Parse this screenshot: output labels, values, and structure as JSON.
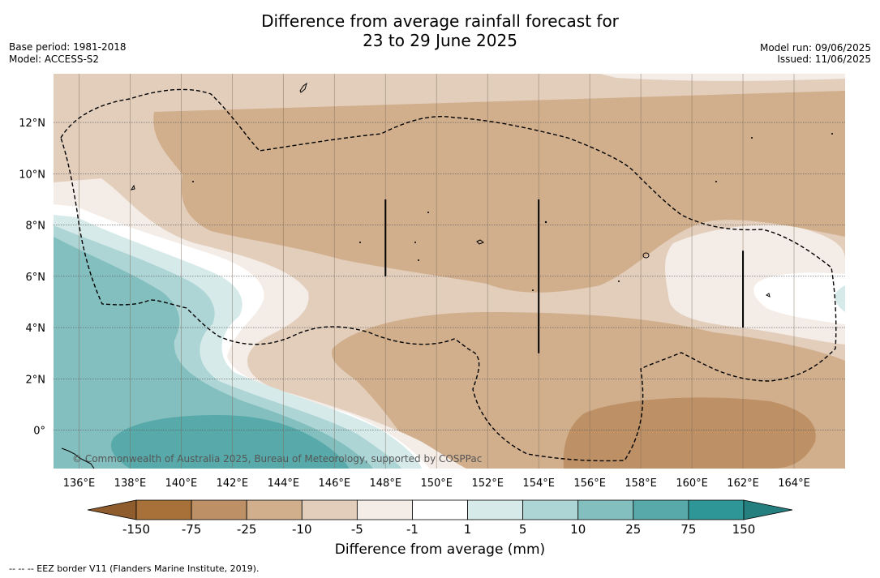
{
  "title_line1": "Difference from average rainfall forecast for",
  "title_line2": "23 to 29 June 2025",
  "base_period": "Base period: 1981-2018",
  "model": "Model: ACCESS-S2",
  "model_run": "Model run: 09/06/2025",
  "issued": "Issued: 11/06/2025",
  "map": {
    "lon_range": [
      135,
      166
    ],
    "lat_range": [
      -1.5,
      13.9
    ],
    "lon_ticks": [
      {
        "value": 136,
        "label": "136°E"
      },
      {
        "value": 138,
        "label": "138°E"
      },
      {
        "value": 140,
        "label": "140°E"
      },
      {
        "value": 142,
        "label": "142°E"
      },
      {
        "value": 144,
        "label": "144°E"
      },
      {
        "value": 146,
        "label": "146°E"
      },
      {
        "value": 148,
        "label": "148°E"
      },
      {
        "value": 150,
        "label": "150°E"
      },
      {
        "value": 152,
        "label": "152°E"
      },
      {
        "value": 154,
        "label": "154°E"
      },
      {
        "value": 156,
        "label": "156°E"
      },
      {
        "value": 158,
        "label": "158°E"
      },
      {
        "value": 160,
        "label": "160°E"
      },
      {
        "value": 162,
        "label": "162°E"
      },
      {
        "value": 164,
        "label": "164°E"
      }
    ],
    "lat_ticks": [
      {
        "value": 12,
        "label": "12°N"
      },
      {
        "value": 10,
        "label": "10°N"
      },
      {
        "value": 8,
        "label": "8°N"
      },
      {
        "value": 6,
        "label": "6°N"
      },
      {
        "value": 4,
        "label": "4°N"
      },
      {
        "value": 2,
        "label": "2°N"
      },
      {
        "value": 0,
        "label": "0°"
      }
    ],
    "meridian_lines": [
      136,
      138,
      140,
      142,
      144,
      146,
      148,
      150,
      152,
      154,
      156,
      158,
      160,
      162,
      164
    ],
    "eez_segments": [
      {
        "lon": 148,
        "lat_start": 6.0,
        "lat_end": 9.0
      },
      {
        "lon": 154,
        "lat_start": 3.0,
        "lat_end": 9.0
      },
      {
        "lon": 162,
        "lat_start": 4.0,
        "lat_end": 7.0
      }
    ],
    "copyright": "© Commonwealth of Australia 2025, Bureau of Meteorology, supported by COSPPac"
  },
  "colorbar": {
    "title": "Difference from average (mm)",
    "ticks": [
      "-150",
      "-75",
      "-25",
      "-10",
      "-5",
      "-1",
      "1",
      "5",
      "10",
      "25",
      "75",
      "150"
    ],
    "colors": [
      "#a87139",
      "#bd9066",
      "#d1af8d",
      "#e3cebc",
      "#f4ece6",
      "#ffffff",
      "#d6eaea",
      "#aed5d5",
      "#84bfbf",
      "#58aaaa",
      "#2e9696"
    ],
    "extend_low_color": "#8f5c2d",
    "extend_high_color": "#267f7f"
  },
  "footer": "-- -- -- EEZ border V11 (Flanders Marine Institute, 2019)."
}
